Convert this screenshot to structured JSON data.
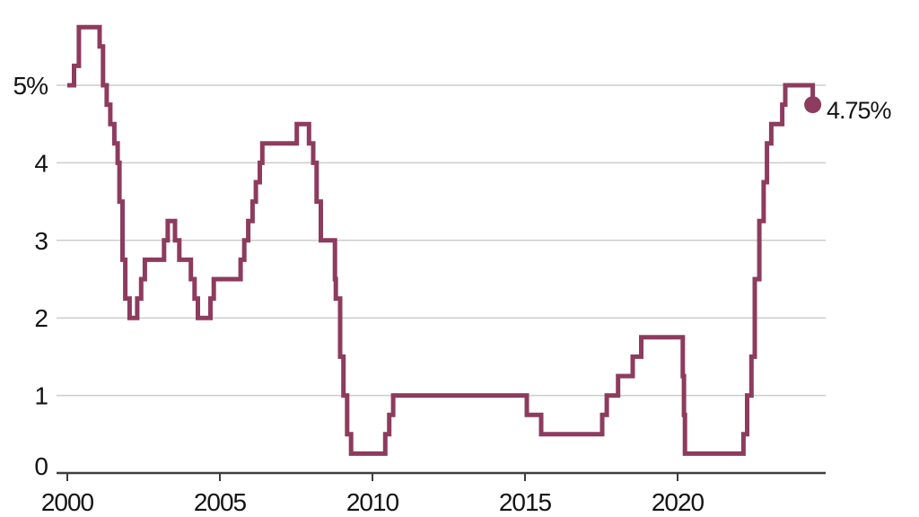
{
  "chart_data": {
    "type": "line",
    "subtype": "step",
    "title": "",
    "unit": "%",
    "line_color": "#8d3b5e",
    "dot_color": "#8d3b5e",
    "grid_color": "#cccccc",
    "axis_color": "#3d3d3d",
    "text_color": "#141414",
    "grid_on": true,
    "legend": "none",
    "end_label": "4.75%",
    "end_dot": {
      "year": 2024.43,
      "value": 4.75
    },
    "x_axis": {
      "min": 2000,
      "max": 2024.85
    },
    "y_axis": {
      "min": 0,
      "max": 5.75
    },
    "y_ticks": [
      {
        "value": 5,
        "label": "5%"
      },
      {
        "value": 4,
        "label": "4"
      },
      {
        "value": 3,
        "label": "3"
      },
      {
        "value": 2,
        "label": "2"
      },
      {
        "value": 1,
        "label": "1"
      },
      {
        "value": 0,
        "label": "0"
      }
    ],
    "x_ticks": [
      {
        "year": 2000,
        "label": "2000"
      },
      {
        "year": 2005,
        "label": "2005"
      },
      {
        "year": 2010,
        "label": "2010"
      },
      {
        "year": 2015,
        "label": "2015"
      },
      {
        "year": 2020,
        "label": "2020"
      }
    ],
    "series": [
      {
        "points": [
          [
            2000.0,
            5.0
          ],
          [
            2000.22,
            5.25
          ],
          [
            2000.38,
            5.75
          ],
          [
            2001.06,
            5.5
          ],
          [
            2001.17,
            5.0
          ],
          [
            2001.29,
            4.75
          ],
          [
            2001.41,
            4.5
          ],
          [
            2001.54,
            4.25
          ],
          [
            2001.65,
            4.0
          ],
          [
            2001.71,
            3.5
          ],
          [
            2001.81,
            2.75
          ],
          [
            2001.9,
            2.25
          ],
          [
            2002.04,
            2.0
          ],
          [
            2002.29,
            2.25
          ],
          [
            2002.42,
            2.5
          ],
          [
            2002.54,
            2.75
          ],
          [
            2003.17,
            3.0
          ],
          [
            2003.29,
            3.25
          ],
          [
            2003.53,
            3.0
          ],
          [
            2003.67,
            2.75
          ],
          [
            2004.05,
            2.5
          ],
          [
            2004.17,
            2.25
          ],
          [
            2004.28,
            2.0
          ],
          [
            2004.69,
            2.25
          ],
          [
            2004.8,
            2.5
          ],
          [
            2005.68,
            2.75
          ],
          [
            2005.8,
            3.0
          ],
          [
            2005.93,
            3.25
          ],
          [
            2006.07,
            3.5
          ],
          [
            2006.18,
            3.75
          ],
          [
            2006.31,
            4.0
          ],
          [
            2006.39,
            4.25
          ],
          [
            2007.52,
            4.5
          ],
          [
            2007.92,
            4.25
          ],
          [
            2008.06,
            4.0
          ],
          [
            2008.17,
            3.5
          ],
          [
            2008.31,
            3.0
          ],
          [
            2008.77,
            2.5
          ],
          [
            2008.8,
            2.25
          ],
          [
            2008.94,
            1.5
          ],
          [
            2009.05,
            1.0
          ],
          [
            2009.17,
            0.5
          ],
          [
            2009.3,
            0.25
          ],
          [
            2010.42,
            0.5
          ],
          [
            2010.55,
            0.75
          ],
          [
            2010.68,
            1.0
          ],
          [
            2015.06,
            0.75
          ],
          [
            2015.53,
            0.5
          ],
          [
            2017.53,
            0.75
          ],
          [
            2017.68,
            1.0
          ],
          [
            2018.05,
            1.25
          ],
          [
            2018.53,
            1.5
          ],
          [
            2018.81,
            1.75
          ],
          [
            2020.17,
            1.25
          ],
          [
            2020.21,
            0.75
          ],
          [
            2020.24,
            0.25
          ],
          [
            2022.16,
            0.5
          ],
          [
            2022.28,
            1.0
          ],
          [
            2022.42,
            1.5
          ],
          [
            2022.53,
            2.5
          ],
          [
            2022.68,
            3.25
          ],
          [
            2022.82,
            3.75
          ],
          [
            2022.93,
            4.25
          ],
          [
            2023.07,
            4.5
          ],
          [
            2023.43,
            4.75
          ],
          [
            2023.53,
            5.0
          ],
          [
            2024.43,
            4.75
          ]
        ]
      }
    ]
  }
}
